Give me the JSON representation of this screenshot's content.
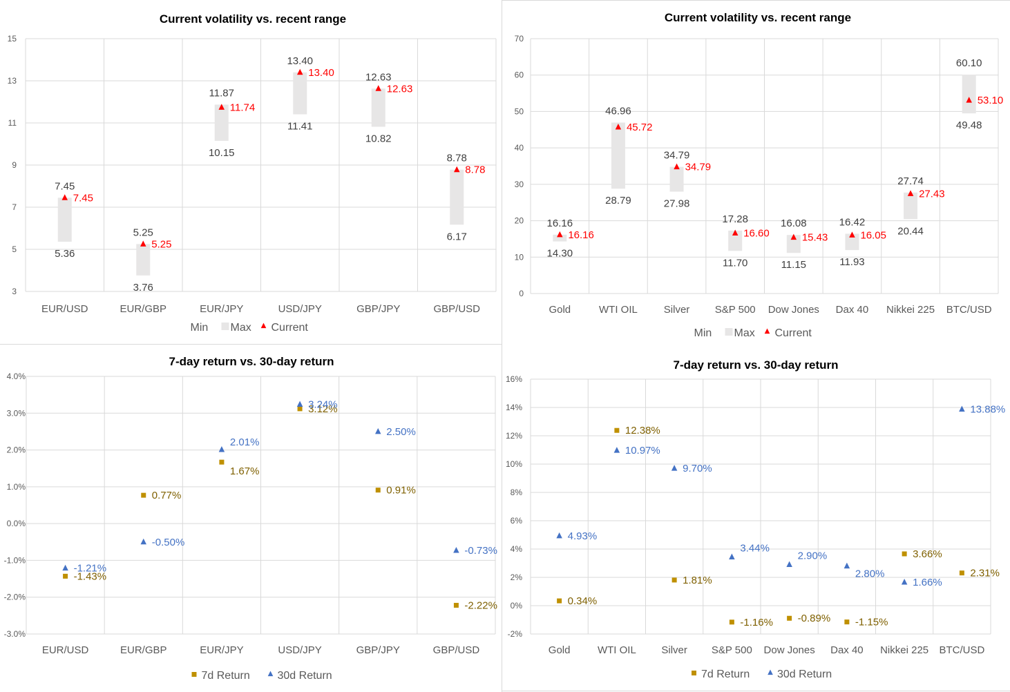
{
  "colors": {
    "range_bar": "#e7e6e6",
    "current_marker": "#ff0000",
    "seven_day": "#bf9000",
    "seven_day_label": "#7f6000",
    "thirty_day": "#4472c4",
    "gridline": "#d9d9d9",
    "axis_text": "#595959"
  },
  "chart_data": [
    {
      "id": "fx-volatility",
      "type": "range-bar-with-markers",
      "title": "Current volatility vs. recent range",
      "xlabel": "",
      "ylabel": "",
      "ylim": [
        3,
        15
      ],
      "yticks": [
        3,
        5,
        7,
        9,
        11,
        13,
        15
      ],
      "ytick_labels": [
        "3",
        "5",
        "7",
        "9",
        "11",
        "13",
        "15"
      ],
      "grid": true,
      "legend": {
        "placement": "bottom",
        "entries": [
          "Min",
          "Max",
          "Current"
        ]
      },
      "categories": [
        "EUR/USD",
        "EUR/GBP",
        "EUR/JPY",
        "USD/JPY",
        "GBP/JPY",
        "GBP/USD"
      ],
      "series": [
        {
          "name": "Min",
          "values": [
            5.36,
            3.76,
            10.15,
            11.41,
            10.82,
            6.17
          ],
          "labels": [
            "5.36",
            "3.76",
            "10.15",
            "11.41",
            "10.82",
            "6.17"
          ]
        },
        {
          "name": "Max",
          "values": [
            7.45,
            5.25,
            11.87,
            13.4,
            12.63,
            8.78
          ],
          "labels": [
            "7.45",
            "5.25",
            "11.87",
            "13.40",
            "12.63",
            "8.78"
          ]
        },
        {
          "name": "Current",
          "values": [
            7.45,
            5.25,
            11.74,
            13.4,
            12.63,
            8.78
          ],
          "labels": [
            "7.45",
            "5.25",
            "11.74",
            "13.40",
            "12.63",
            "8.78"
          ]
        }
      ]
    },
    {
      "id": "asset-volatility",
      "type": "range-bar-with-markers",
      "title": "Current volatility vs. recent range",
      "xlabel": "",
      "ylabel": "",
      "ylim": [
        0,
        70
      ],
      "yticks": [
        0,
        10,
        20,
        30,
        40,
        50,
        60,
        70
      ],
      "ytick_labels": [
        "0",
        "10",
        "20",
        "30",
        "40",
        "50",
        "60",
        "70"
      ],
      "grid": true,
      "legend": {
        "placement": "bottom",
        "entries": [
          "Min",
          "Max",
          "Current"
        ]
      },
      "categories": [
        "Gold",
        "WTI OIL",
        "Silver",
        "S&P 500",
        "Dow Jones",
        "Dax 40",
        "Nikkei 225",
        "BTC/USD"
      ],
      "series": [
        {
          "name": "Min",
          "values": [
            14.3,
            28.79,
            27.98,
            11.7,
            11.15,
            11.93,
            20.44,
            49.48
          ],
          "labels": [
            "14.30",
            "28.79",
            "27.98",
            "11.70",
            "11.15",
            "11.93",
            "20.44",
            "49.48"
          ]
        },
        {
          "name": "Max",
          "values": [
            16.16,
            46.96,
            34.79,
            17.28,
            16.08,
            16.42,
            27.74,
            60.1
          ],
          "labels": [
            "16.16",
            "46.96",
            "34.79",
            "17.28",
            "16.08",
            "16.42",
            "27.74",
            "60.10"
          ]
        },
        {
          "name": "Current",
          "values": [
            16.16,
            45.72,
            34.79,
            16.6,
            15.43,
            16.05,
            27.43,
            53.1
          ],
          "labels": [
            "16.16",
            "45.72",
            "34.79",
            "16.60",
            "15.43",
            "16.05",
            "27.43",
            "53.10"
          ]
        }
      ]
    },
    {
      "id": "fx-returns",
      "type": "scatter",
      "title": "7-day return vs. 30-day return",
      "xlabel": "",
      "ylabel": "",
      "ylim": [
        -3.0,
        4.0
      ],
      "yticks": [
        -3,
        -2,
        -1,
        0,
        1,
        2,
        3,
        4
      ],
      "ytick_labels": [
        "-3.0%",
        "-2.0%",
        "-1.0%",
        "0.0%",
        "1.0%",
        "2.0%",
        "3.0%",
        "4.0%"
      ],
      "grid": true,
      "legend": {
        "placement": "bottom",
        "entries": [
          "7d Return",
          "30d Return"
        ]
      },
      "categories": [
        "EUR/USD",
        "EUR/GBP",
        "EUR/JPY",
        "USD/JPY",
        "GBP/JPY",
        "GBP/USD"
      ],
      "series": [
        {
          "name": "7d Return",
          "values": [
            -1.43,
            0.77,
            1.67,
            3.12,
            0.91,
            -2.22
          ],
          "labels": [
            "-1.43%",
            "0.77%",
            "1.67%",
            "3.12%",
            "0.91%",
            "-2.22%"
          ]
        },
        {
          "name": "30d Return",
          "values": [
            -1.21,
            -0.5,
            2.01,
            3.24,
            2.5,
            -0.73
          ],
          "labels": [
            "-1.21%",
            "-0.50%",
            "2.01%",
            "3.24%",
            "2.50%",
            "-0.73%"
          ]
        }
      ]
    },
    {
      "id": "asset-returns",
      "type": "scatter",
      "title": "7-day return vs. 30-day return",
      "xlabel": "",
      "ylabel": "",
      "ylim": [
        -2,
        16
      ],
      "yticks": [
        -2,
        0,
        2,
        4,
        6,
        8,
        10,
        12,
        14,
        16
      ],
      "ytick_labels": [
        "-2%",
        "0%",
        "2%",
        "4%",
        "6%",
        "8%",
        "10%",
        "12%",
        "14%",
        "16%"
      ],
      "grid": true,
      "legend": {
        "placement": "bottom",
        "entries": [
          "7d Return",
          "30d Return"
        ]
      },
      "categories": [
        "Gold",
        "WTI OIL",
        "Silver",
        "S&P 500",
        "Dow Jones",
        "Dax 40",
        "Nikkei 225",
        "BTC/USD"
      ],
      "series": [
        {
          "name": "7d Return",
          "values": [
            0.34,
            12.38,
            1.81,
            -1.16,
            -0.89,
            -1.15,
            3.66,
            2.31
          ],
          "labels": [
            "0.34%",
            "12.38%",
            "1.81%",
            "-1.16%",
            "-0.89%",
            "-1.15%",
            "3.66%",
            "2.31%"
          ]
        },
        {
          "name": "30d Return",
          "values": [
            4.93,
            10.97,
            9.7,
            3.44,
            2.9,
            2.8,
            1.66,
            13.88
          ],
          "labels": [
            "4.93%",
            "10.97%",
            "9.70%",
            "3.44%",
            "2.90%",
            "2.80%",
            "1.66%",
            "13.88%"
          ]
        }
      ]
    }
  ]
}
